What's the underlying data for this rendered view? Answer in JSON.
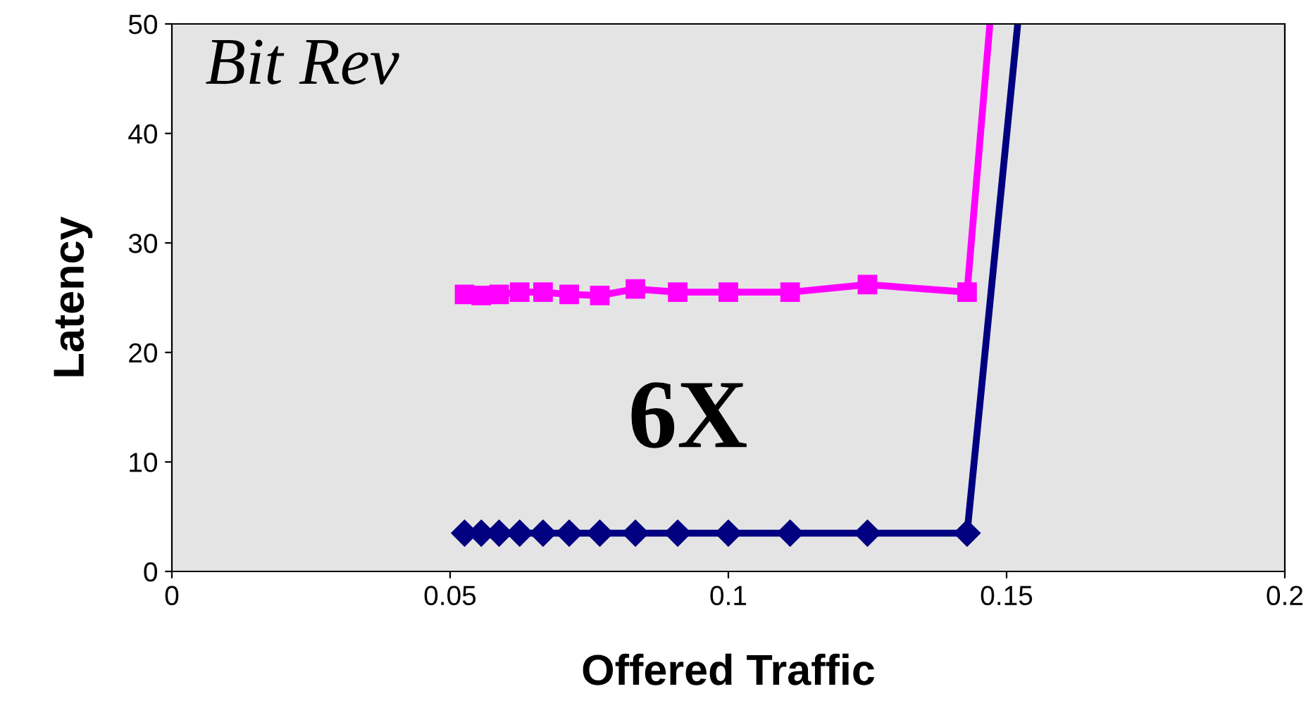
{
  "chart_data": {
    "type": "line",
    "xlabel": "Offered Traffic",
    "ylabel": "Latency",
    "annotations": [
      "Bit Rev",
      "6X"
    ],
    "series": [
      {
        "color": "#ff00ff",
        "marker": "square",
        "x": [
          0.0526,
          0.0556,
          0.0588,
          0.0625,
          0.0667,
          0.0714,
          0.0769,
          0.0833,
          0.0909,
          0.1,
          0.1111,
          0.125,
          0.1429,
          0.147
        ],
        "values": [
          25.3,
          25.2,
          25.3,
          25.5,
          25.5,
          25.3,
          25.2,
          25.8,
          25.5,
          25.5,
          25.5,
          26.2,
          25.5,
          50
        ]
      },
      {
        "color": "#000080",
        "marker": "diamond",
        "x": [
          0.0526,
          0.0556,
          0.0588,
          0.0625,
          0.0667,
          0.0714,
          0.0769,
          0.0833,
          0.0909,
          0.1,
          0.1111,
          0.125,
          0.1429,
          0.152
        ],
        "values": [
          3.5,
          3.5,
          3.5,
          3.5,
          3.5,
          3.5,
          3.5,
          3.5,
          3.5,
          3.5,
          3.5,
          3.5,
          3.5,
          50
        ]
      }
    ],
    "xlim": [
      0,
      0.2
    ],
    "xticks": [
      0,
      0.05,
      0.1,
      0.15,
      0.2
    ],
    "ylim": [
      0,
      50
    ],
    "yticks": [
      0,
      10,
      20,
      30,
      40,
      50
    ],
    "grid": false,
    "legend": false
  }
}
